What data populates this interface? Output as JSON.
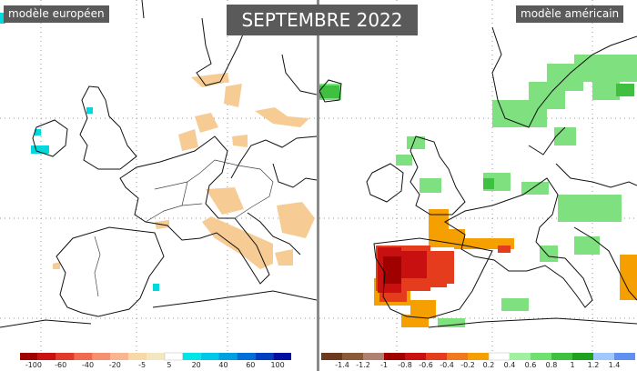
{
  "title": "SEPTEMBRE 2022",
  "left_panel": {
    "label": "modèle européen",
    "colorbar": {
      "colors": [
        "#a00000",
        "#c81010",
        "#e03a2a",
        "#f06a50",
        "#f59070",
        "#f8b590",
        "#f9d8a8",
        "#f4e6c0",
        "#ffffff",
        "#00e6e6",
        "#00c8e8",
        "#00a0e0",
        "#0070d8",
        "#0040c0",
        "#0010a0"
      ],
      "ticks": [
        "-100",
        "-60",
        "-40",
        "-20",
        "-5",
        "5",
        "20",
        "40",
        "60",
        "100"
      ]
    }
  },
  "right_panel": {
    "label": "modèle américain",
    "colorbar": {
      "colors": [
        "#6b3a1e",
        "#8a5a3a",
        "#b08070",
        "#a00000",
        "#c81010",
        "#e63c1e",
        "#f07820",
        "#f5a000",
        "#ffffff",
        "#a0f0a0",
        "#70e070",
        "#40c040",
        "#20a020",
        "#a0c8ff",
        "#6090f0"
      ],
      "ticks": [
        "-1.4",
        "-1.2",
        "-1",
        "-0.8",
        "-0.6",
        "-0.4",
        "-0.2",
        "0.2",
        "0.4",
        "0.6",
        "0.8",
        "1",
        "1.2",
        "1.4"
      ]
    }
  }
}
